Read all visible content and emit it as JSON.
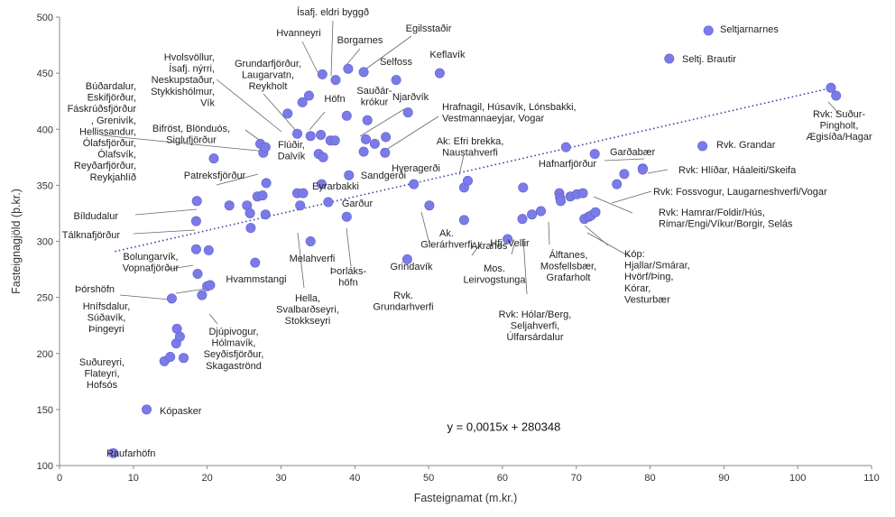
{
  "chart_data": {
    "type": "scatter",
    "title": "",
    "xlabel": "Fasteignamat (m.kr.)",
    "ylabel": "Fasteignagjöld (þ.kr.)",
    "xlim": [
      0,
      110
    ],
    "ylim": [
      100,
      500
    ],
    "xticks": [
      "0",
      "10",
      "20",
      "30",
      "40",
      "50",
      "60",
      "70",
      "80",
      "90",
      "100",
      "110"
    ],
    "yticks": [
      "100",
      "150",
      "200",
      "250",
      "300",
      "350",
      "400",
      "450",
      "500"
    ],
    "grid": false,
    "point_color": "#7b7be8",
    "trendline": {
      "equation": "y = 0,0015x + 280348",
      "x": [
        7.5,
        104
      ],
      "y": [
        291,
        436
      ]
    },
    "points": [
      [
        7.3,
        111
      ],
      [
        11.8,
        150
      ],
      [
        14.2,
        193
      ],
      [
        15,
        197
      ],
      [
        15.8,
        209
      ],
      [
        16.8,
        196
      ],
      [
        15.9,
        222
      ],
      [
        16.3,
        215
      ],
      [
        15.2,
        249
      ],
      [
        19.3,
        252
      ],
      [
        20,
        260
      ],
      [
        20.4,
        261
      ],
      [
        18.7,
        271
      ],
      [
        18.5,
        293
      ],
      [
        20.2,
        292
      ],
      [
        26.5,
        281
      ],
      [
        18.5,
        318
      ],
      [
        18.6,
        336
      ],
      [
        20.9,
        374
      ],
      [
        23,
        332
      ],
      [
        25.4,
        332
      ],
      [
        25.8,
        325
      ],
      [
        25.9,
        312
      ],
      [
        26.8,
        340
      ],
      [
        27.5,
        341
      ],
      [
        28,
        352
      ],
      [
        27.9,
        324
      ],
      [
        27.6,
        379
      ],
      [
        27.2,
        387
      ],
      [
        27.9,
        384
      ],
      [
        30.9,
        414
      ],
      [
        32.2,
        396
      ],
      [
        32.9,
        424
      ],
      [
        33.8,
        430
      ],
      [
        34,
        394
      ],
      [
        35.4,
        395
      ],
      [
        35.1,
        378
      ],
      [
        35.7,
        375
      ],
      [
        36.7,
        390
      ],
      [
        37.3,
        390
      ],
      [
        32.2,
        343
      ],
      [
        33,
        343
      ],
      [
        32.6,
        332
      ],
      [
        35.5,
        351
      ],
      [
        36.4,
        335
      ],
      [
        38.9,
        322
      ],
      [
        34,
        300
      ],
      [
        39.2,
        359
      ],
      [
        35.6,
        449
      ],
      [
        37.4,
        444
      ],
      [
        39.1,
        454
      ],
      [
        38.9,
        412
      ],
      [
        41.2,
        451
      ],
      [
        41.7,
        408
      ],
      [
        41.5,
        391
      ],
      [
        41.2,
        380
      ],
      [
        42.7,
        387
      ],
      [
        44.1,
        379
      ],
      [
        44.2,
        393
      ],
      [
        45.6,
        444
      ],
      [
        47.2,
        415
      ],
      [
        48,
        351
      ],
      [
        51.5,
        450
      ],
      [
        50.1,
        332
      ],
      [
        54.8,
        348
      ],
      [
        55.3,
        354
      ],
      [
        54.8,
        319
      ],
      [
        47.1,
        284
      ],
      [
        60.7,
        302
      ],
      [
        62.8,
        348
      ],
      [
        62.7,
        320
      ],
      [
        64,
        324
      ],
      [
        65.2,
        327
      ],
      [
        67.7,
        343
      ],
      [
        67.8,
        339
      ],
      [
        67.9,
        336
      ],
      [
        69.2,
        340
      ],
      [
        70.1,
        342
      ],
      [
        70.9,
        343
      ],
      [
        71.1,
        320
      ],
      [
        71.7,
        322
      ],
      [
        72,
        323
      ],
      [
        72.6,
        326
      ],
      [
        68.6,
        384
      ],
      [
        72.5,
        378
      ],
      [
        75.5,
        351
      ],
      [
        76.5,
        360
      ],
      [
        79,
        365
      ],
      [
        79,
        364
      ],
      [
        82.6,
        463
      ],
      [
        87.9,
        488
      ],
      [
        87.1,
        385
      ],
      [
        104.5,
        437
      ],
      [
        105.2,
        430
      ]
    ],
    "labels": [
      {
        "text": [
          "Ísafj. eldri byggð"
        ]
      },
      {
        "text": [
          "Hvanneyri"
        ]
      },
      {
        "text": [
          "Borgarnes"
        ]
      },
      {
        "text": [
          "Egilsstaðir"
        ]
      },
      {
        "text": [
          "Keflavík"
        ]
      },
      {
        "text": [
          "Selfoss"
        ]
      },
      {
        "text": [
          "Hvolsvöllur,",
          "Ísafj. nýrri,",
          "Neskupstaður,",
          "Stykkishólmur,",
          "Vík"
        ]
      },
      {
        "text": [
          "Grundarfjörður,",
          "Laugarvatn,",
          "Reykholt"
        ]
      },
      {
        "text": [
          "Höfn"
        ]
      },
      {
        "text": [
          "Sauðár-",
          "krókur"
        ]
      },
      {
        "text": [
          "Njarðvík"
        ]
      },
      {
        "text": [
          "Búðardalur,",
          "Eskifjörður,",
          "Fáskrúðsfjörður",
          ", Grenivík,",
          "Hellissandur,",
          "Ólafsfjörður,",
          "Ólafsvík,",
          "Reyðarfjörður,",
          "Reykjahlíð"
        ]
      },
      {
        "text": [
          "Bifröst, Blönduós,",
          "Siglufjörður"
        ]
      },
      {
        "text": [
          "Flúðir,",
          "Dalvík"
        ]
      },
      {
        "text": [
          "Hrafnagil, Húsavík, Lónsbakki,",
          "Vestmannaeyjar, Vogar"
        ]
      },
      {
        "text": [
          "Ak: Efri brekka,",
          "Naustahverfi"
        ]
      },
      {
        "text": [
          "Hveragerði"
        ]
      },
      {
        "text": [
          "Sandgerði"
        ]
      },
      {
        "text": [
          "Eyrarbakki"
        ]
      },
      {
        "text": [
          "Garður"
        ]
      },
      {
        "text": [
          "Patreksfjörður"
        ]
      },
      {
        "text": [
          "Bíldudalur"
        ]
      },
      {
        "text": [
          "Tálknafjörður"
        ]
      },
      {
        "text": [
          "Bolungarvík,",
          "Vopnafjörður"
        ]
      },
      {
        "text": [
          "Hvammstangi"
        ]
      },
      {
        "text": [
          "Þórshöfn"
        ]
      },
      {
        "text": [
          "Hnífsdalur,",
          "Súðavík,",
          "Þingeyri"
        ]
      },
      {
        "text": [
          "Djúpivogur,",
          "Hólmavík,",
          "Seyðisfjörður,",
          "Skagaströnd"
        ]
      },
      {
        "text": [
          "Suðureyri,",
          "Flateyri,",
          "Hofsós"
        ]
      },
      {
        "text": [
          "Kópasker"
        ]
      },
      {
        "text": [
          "Raufarhöfn"
        ]
      },
      {
        "text": [
          "Melahverfi"
        ]
      },
      {
        "text": [
          "Hella,",
          "Svalbarðseyri,",
          "Stokkseyri"
        ]
      },
      {
        "text": [
          "Þorláks-",
          "höfn"
        ]
      },
      {
        "text": [
          "Grindavík"
        ]
      },
      {
        "text": [
          "Ak.",
          "Glerárhverfi"
        ]
      },
      {
        "text": [
          "Rvk.",
          "Grundarhverfi"
        ]
      },
      {
        "text": [
          "Akranes"
        ]
      },
      {
        "text": [
          "Hfj. Vellir"
        ]
      },
      {
        "text": [
          "Mos.",
          "Leirvogstunga"
        ]
      },
      {
        "text": [
          "Álftanes,",
          "Mosfellsbær,",
          "Grafarholt"
        ]
      },
      {
        "text": [
          "Rvk: Hólar/Berg,",
          "Seljahverfi,",
          "Úlfarsárdalur"
        ]
      },
      {
        "text": [
          "Hafnarfjörður"
        ]
      },
      {
        "text": [
          "Garðabær"
        ]
      },
      {
        "text": [
          "Rvk. Grandar"
        ]
      },
      {
        "text": [
          "Rvk: Hlíðar, Háaleiti/Skeifa"
        ]
      },
      {
        "text": [
          "Rvk: Fossvogur, Laugarneshverfi/Vogar"
        ]
      },
      {
        "text": [
          "Rvk: Hamrar/Foldir/Hús,",
          "Rimar/Engi/Víkur/Borgir, Selás"
        ]
      },
      {
        "text": [
          "Kóp:",
          "Hjallar/Smárar,",
          "Hvörf/Þing,",
          "Kórar,",
          "Vesturbær"
        ]
      },
      {
        "text": [
          "Seltjarnarnes"
        ]
      },
      {
        "text": [
          "Seltj. Brautir"
        ]
      },
      {
        "text": [
          "Rvk: Suður-",
          "Pingholt,",
          "Ægisíða/Hagar"
        ]
      }
    ]
  }
}
